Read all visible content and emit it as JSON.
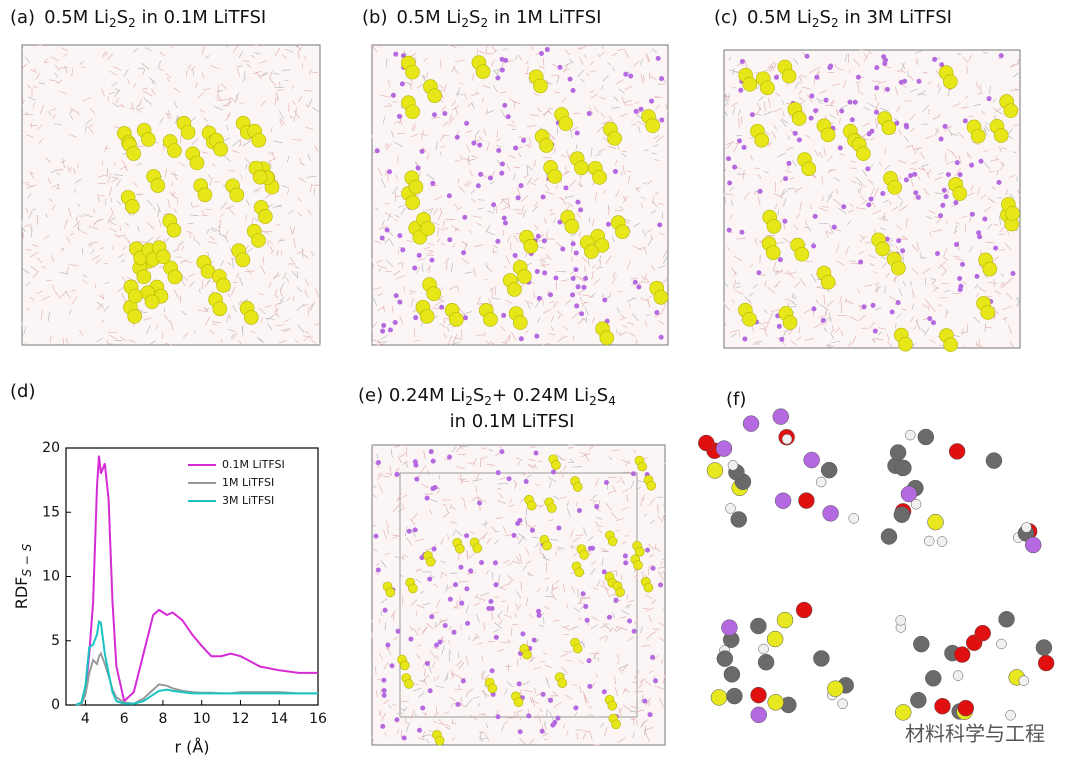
{
  "panels": [
    {
      "label": "(a)",
      "title_lines": [
        [
          "0.5M Li",
          "2",
          "S",
          "2",
          " in 0.1M LiTFSI"
        ]
      ]
    },
    {
      "label": "(b)",
      "title_lines": [
        [
          "0.5M Li",
          "2",
          "S",
          "2",
          " in 1M LiTFSI"
        ]
      ]
    },
    {
      "label": "(c)",
      "title_lines": [
        [
          "0.5M Li",
          "2",
          "S",
          "2",
          " in 3M LiTFSI"
        ]
      ]
    },
    {
      "label": "(e)",
      "title_lines": [
        [
          "0.24M Li",
          "2",
          "S",
          "2",
          "+ 0.24M Li",
          "2",
          "S",
          "4"
        ],
        [
          "in 0.1M LiTFSI"
        ]
      ]
    },
    {
      "label": "(f)",
      "title_lines": []
    }
  ],
  "watermark": "材料科学与工程",
  "chart_data": {
    "type": "line",
    "label": "(d)",
    "x_label": "r (Å)",
    "y_label": [
      "RDF",
      "S − S"
    ],
    "x": [
      3.5,
      3.8,
      4.0,
      4.2,
      4.4,
      4.6,
      4.7,
      4.8,
      5.0,
      5.2,
      5.4,
      5.6,
      6.0,
      6.5,
      7.0,
      7.5,
      7.8,
      8.2,
      8.5,
      9.0,
      9.5,
      10.0,
      10.5,
      11.0,
      11.5,
      12.0,
      12.5,
      13.0,
      14.0,
      15.0,
      16.0
    ],
    "series": [
      {
        "name": "0.1M LiTFSI",
        "color": "#d62ad6",
        "values": [
          0,
          0.2,
          1,
          4,
          8,
          17,
          19.4,
          18,
          18.8,
          16,
          8,
          3,
          0.3,
          1,
          4,
          7,
          7.4,
          7,
          7.2,
          6.6,
          5.5,
          4.6,
          3.8,
          3.8,
          4,
          3.8,
          3.4,
          3.0,
          2.7,
          2.5,
          2.5
        ]
      },
      {
        "name": "1M LiTFSI",
        "color": "#999999",
        "values": [
          0,
          0.1,
          0.8,
          2.5,
          3.5,
          3.2,
          3.8,
          4,
          3.2,
          2.3,
          1.2,
          0.6,
          0.2,
          0.1,
          0.5,
          1.2,
          1.6,
          1.5,
          1.3,
          1.1,
          1,
          0.95,
          0.95,
          0.9,
          0.9,
          1,
          1,
          1,
          1,
          0.9,
          0.9
        ]
      },
      {
        "name": "3M LiTFSI",
        "color": "#19c3c3",
        "values": [
          0,
          0.2,
          1.5,
          4.5,
          4.7,
          5.5,
          6.5,
          6.4,
          4,
          2.5,
          1,
          0.3,
          0.1,
          0.1,
          0.3,
          0.8,
          1.1,
          1.2,
          1.1,
          1.0,
          0.9,
          0.9,
          0.9,
          0.9,
          0.9,
          0.9,
          0.9,
          0.9,
          0.9,
          0.9,
          0.9
        ]
      }
    ],
    "xlim": [
      3,
      16
    ],
    "ylim": [
      0,
      20
    ],
    "xticks": [
      4,
      6,
      8,
      10,
      12,
      14,
      16
    ],
    "yticks": [
      0,
      5,
      10,
      15,
      20
    ],
    "legend": "upper right"
  }
}
